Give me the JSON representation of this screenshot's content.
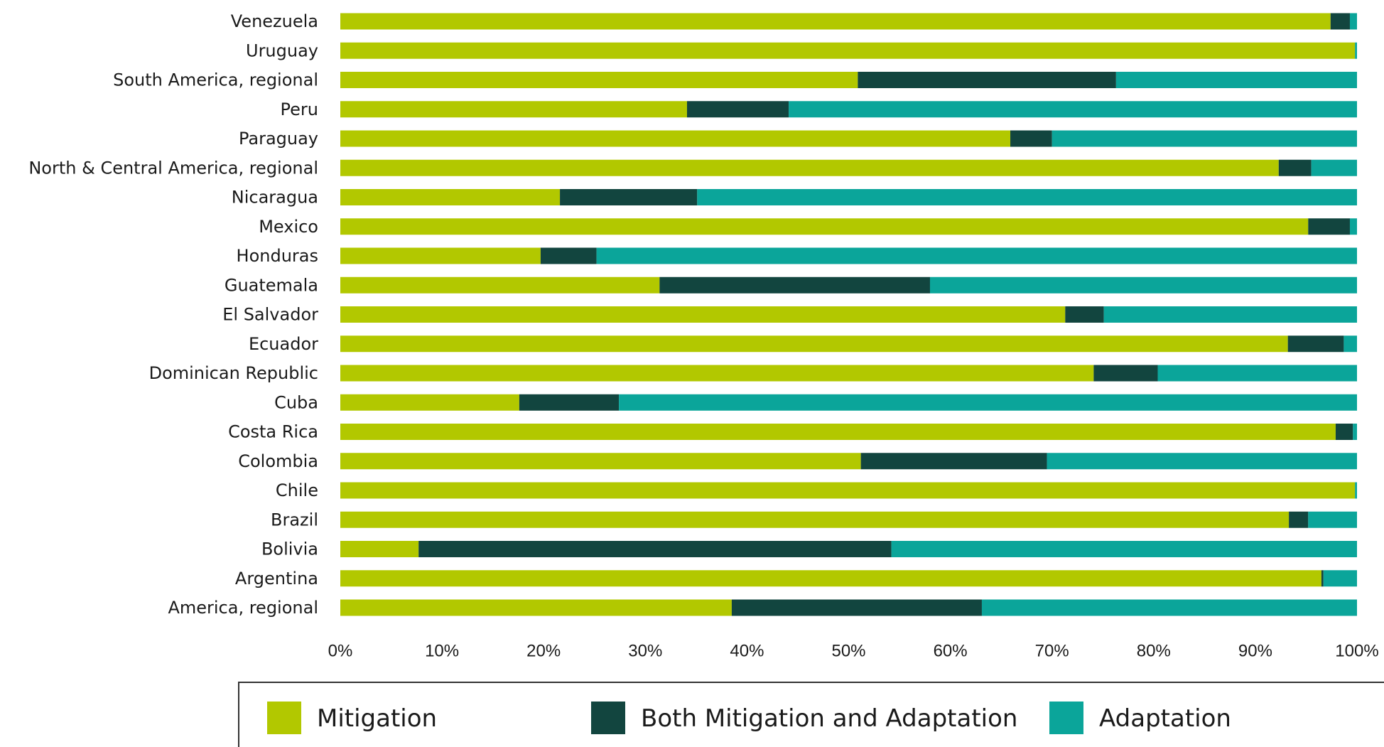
{
  "chart_data": {
    "type": "bar",
    "orientation": "horizontal",
    "stacked": "percent",
    "categories": [
      "Venezuela",
      "Uruguay",
      "South America, regional",
      "Peru",
      "Paraguay",
      "North & Central America, regional",
      "Nicaragua",
      "Mexico",
      "Honduras",
      "Guatemala",
      "El Salvador",
      "Ecuador",
      "Dominican Republic",
      "Cuba",
      "Costa Rica",
      "Colombia",
      "Chile",
      "Brazil",
      "Bolivia",
      "Argentina",
      "America, regional"
    ],
    "series": [
      {
        "name": "Mitigation",
        "color": "#b2c800",
        "values": [
          97.4,
          99.8,
          50.9,
          34.1,
          65.9,
          92.3,
          21.6,
          95.2,
          19.7,
          31.4,
          71.3,
          93.2,
          74.1,
          17.6,
          97.9,
          51.2,
          99.8,
          93.3,
          7.7,
          96.5,
          38.5
        ]
      },
      {
        "name": "Both Mitigation and Adaptation",
        "color": "#12453f",
        "values": [
          1.9,
          0,
          25.4,
          10.0,
          4.1,
          3.2,
          13.5,
          4.1,
          5.5,
          26.6,
          3.8,
          5.5,
          6.3,
          9.8,
          1.7,
          18.3,
          0,
          1.9,
          46.5,
          0.2,
          24.6
        ]
      },
      {
        "name": "Adaptation",
        "color": "#0ba59a",
        "values": [
          0.7,
          0.2,
          23.7,
          55.9,
          30.0,
          4.5,
          64.9,
          0.7,
          74.8,
          42.0,
          24.9,
          1.3,
          19.6,
          72.6,
          0.4,
          30.5,
          0.2,
          4.8,
          45.8,
          3.3,
          36.9
        ]
      }
    ],
    "xlim": [
      0,
      100
    ],
    "xticks": [
      "0%",
      "10%",
      "20%",
      "30%",
      "40%",
      "50%",
      "60%",
      "70%",
      "80%",
      "90%",
      "100%"
    ],
    "title": "",
    "xlabel": "",
    "ylabel": "",
    "grid": false,
    "legend_position": "bottom"
  }
}
